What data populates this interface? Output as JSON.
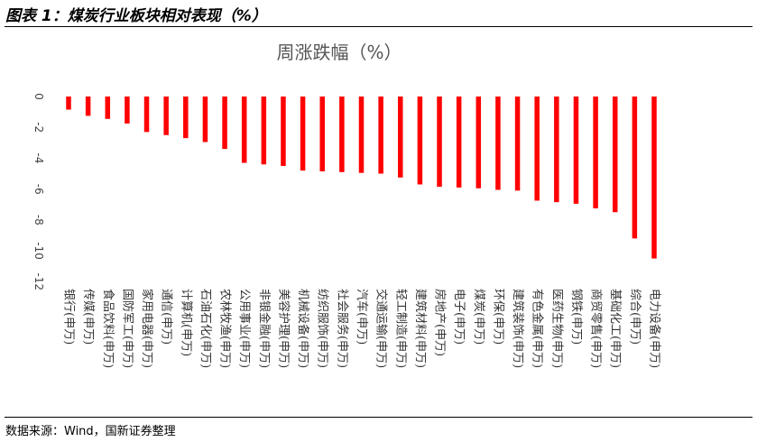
{
  "figure": {
    "title": "图表 1：煤炭行业板块相对表现（%）",
    "source": "数据来源：Wind，国新证券整理"
  },
  "chart_data": {
    "type": "bar",
    "title": "周涨跌幅（%）",
    "categories": [
      "银行(申万)",
      "传媒(申万)",
      "食品饮料(申万)",
      "国防军工(申万)",
      "家用电器(申万)",
      "通信(申万)",
      "计算机(申万)",
      "石油石化(申万)",
      "农林牧渔(申万)",
      "公用事业(申万)",
      "非银金融(申万)",
      "美容护理(申万)",
      "机械设备(申万)",
      "纺织服饰(申万)",
      "社会服务(申万)",
      "汽车(申万)",
      "交通运输(申万)",
      "轻工制造(申万)",
      "建筑材料(申万)",
      "房地产(申万)",
      "电子(申万)",
      "煤炭(申万)",
      "环保(申万)",
      "建筑装饰(申万)",
      "有色金属(申万)",
      "医药生物(申万)",
      "钢铁(申万)",
      "商贸零售(申万)",
      "基础化工(申万)",
      "综合(申万)",
      "电力设备(申万)"
    ],
    "values": [
      -0.85,
      -1.25,
      -1.45,
      -1.75,
      -2.3,
      -2.5,
      -2.7,
      -2.95,
      -3.4,
      -4.3,
      -4.4,
      -4.5,
      -4.8,
      -4.85,
      -4.9,
      -4.95,
      -5.0,
      -5.25,
      -5.7,
      -5.85,
      -5.9,
      -5.95,
      -6.05,
      -6.1,
      -6.75,
      -6.85,
      -6.95,
      -7.25,
      -7.5,
      -9.2,
      -10.5
    ],
    "ylim": [
      -12,
      0
    ],
    "yticks": [
      0,
      -2,
      -4,
      -6,
      -8,
      -10,
      -12
    ],
    "bar_color": "#FF0000",
    "grid": false,
    "legend": "none"
  }
}
